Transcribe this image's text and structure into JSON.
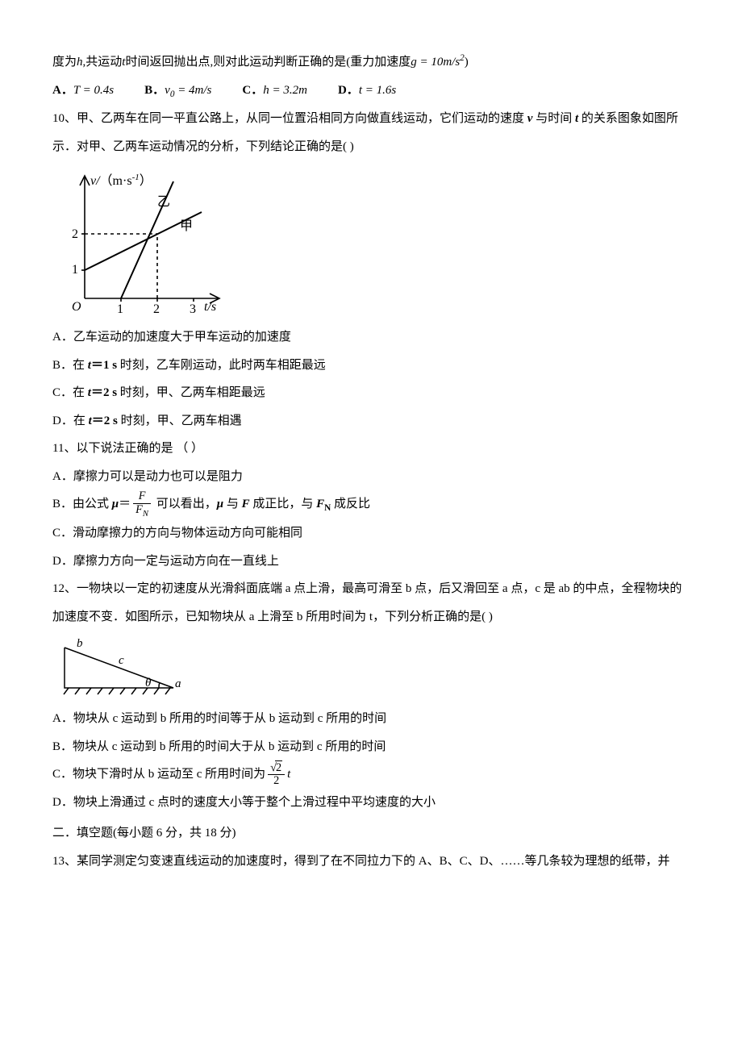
{
  "q9_tail": {
    "pretext": "度为",
    "h": "h",
    "mid1": ",共运动",
    "tvar": "t",
    "mid2": "时间返回抛出点,则对此运动判断正确的是(重力加速度",
    "g_expr_prefix": "g = 10m/s",
    "g_exp": "2",
    "close": ")",
    "options": {
      "A": {
        "label": "A．",
        "text": "T = 0.4s"
      },
      "B": {
        "label": "B．",
        "text": "v",
        "sub": "0",
        "tail": " = 4m/s"
      },
      "C": {
        "label": "C．",
        "text": "h = 3.2m"
      },
      "D": {
        "label": "D．",
        "text": "t = 1.6s"
      }
    }
  },
  "q10": {
    "num": "10、",
    "text1": "甲、乙两车在同一平直公路上，从同一位置沿相同方向做直线运动，它们运动的速度 ",
    "v": "v",
    "text2": " 与时间 ",
    "t": "t",
    "text3": " 的关系图象如图所示．对甲、乙两车运动情况的分析，下列结论正确的是(  )",
    "chart": {
      "ylabel_prefix": "v/",
      "ylabel_unit": "（m·s",
      "ylabel_exp": "-1",
      "ylabel_close": "）",
      "xlabel": "t/s",
      "yticks": [
        1,
        2
      ],
      "xticks": [
        1,
        2,
        3
      ],
      "origin": "O",
      "label_jia": "甲",
      "label_yi": "乙",
      "colors": {
        "axis": "#000000",
        "line": "#000000",
        "dash": "#000000"
      }
    },
    "options": {
      "A": "A．乙车运动的加速度大于甲车运动的加速度",
      "B_pre": "B．在 ",
      "B_t": "t",
      "B_eq": "＝1 s",
      "B_tail": " 时刻，乙车刚运动，此时两车相距最远",
      "C_pre": "C．在 ",
      "C_t": "t",
      "C_eq": "＝2 s",
      "C_tail": " 时刻，甲、乙两车相距最远",
      "D_pre": "D．在 ",
      "D_t": "t",
      "D_eq": "＝2 s",
      "D_tail": " 时刻，甲、乙两车相遇"
    }
  },
  "q11": {
    "num": "11、",
    "stem": "以下说法正确的是  （     ）",
    "A": "A．摩擦力可以是动力也可以是阻力",
    "B_pre": "B．由公式 ",
    "B_mu": "μ",
    "B_eq": "＝",
    "B_frac_num": "F",
    "B_frac_den_F": "F",
    "B_frac_den_sub": "N",
    "B_mid": " 可以看出，",
    "B_mu2": "μ",
    "B_mid2": " 与 ",
    "B_F": "F",
    "B_mid3": " 成正比，与 ",
    "B_FN_F": "F",
    "B_FN_sub": "N",
    "B_tail": " 成反比",
    "C": "C．滑动摩擦力的方向与物体运动方向可能相同",
    "D": "D．摩擦力方向一定与运动方向在一直线上"
  },
  "q12": {
    "num": "12、",
    "text": "一物块以一定的初速度从光滑斜面底端 a 点上滑，最高可滑至 b 点，后又滑回至 a 点，c 是 ab 的中点，全程物块的加速度不变．如图所示，已知物块从 a 上滑至 b 所用时间为 t，下列分析正确的是(       )",
    "diagram": {
      "labels": {
        "a": "a",
        "b": "b",
        "c": "c",
        "theta": "θ"
      },
      "colors": {
        "line": "#000000"
      }
    },
    "A": "A．物块从 c 运动到 b 所用的时间等于从 b 运动到 c 所用的时间",
    "B": "B．物块从 c 运动到 b 所用的时间大于从 b 运动到 c 所用的时间",
    "C_pre": "C．物块下滑时从 b 运动至 c 所用时间为",
    "C_frac_num_sqrt": "2",
    "C_frac_den": "2",
    "C_t": "t",
    "D": "D．物块上滑通过 c 点时的速度大小等于整个上滑过程中平均速度的大小"
  },
  "section2": {
    "title": "二．填空题(每小题 6 分，共 18 分)"
  },
  "q13": {
    "num": "13、",
    "text": "某同学测定匀变速直线运动的加速度时，得到了在不同拉力下的 A、B、C、D、……等几条较为理想的纸带，并"
  }
}
